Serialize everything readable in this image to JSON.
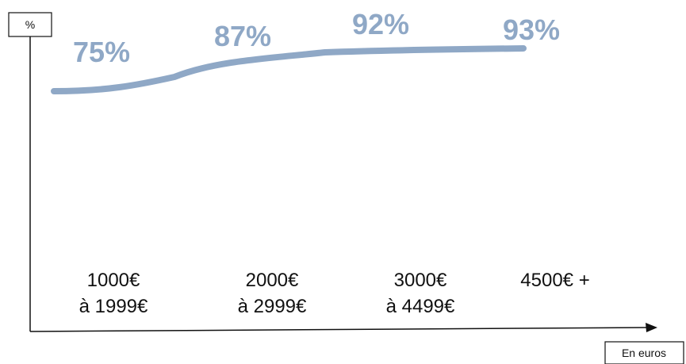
{
  "chart_data": {
    "type": "line",
    "ylabel": "%",
    "xlabel": "En euros",
    "categories": [
      [
        "1000€",
        "à 1999€"
      ],
      [
        "2000€",
        "à 2999€"
      ],
      [
        "3000€",
        "à 4499€"
      ],
      [
        "4500€ +"
      ]
    ],
    "values": [
      75,
      87,
      92,
      93
    ],
    "data_labels": [
      "75%",
      "87%",
      "92%",
      "93%"
    ],
    "grid": false,
    "legend": "none"
  },
  "colors": {
    "series": "#8fa8c6",
    "axis": "#111111",
    "text": "#111111"
  }
}
